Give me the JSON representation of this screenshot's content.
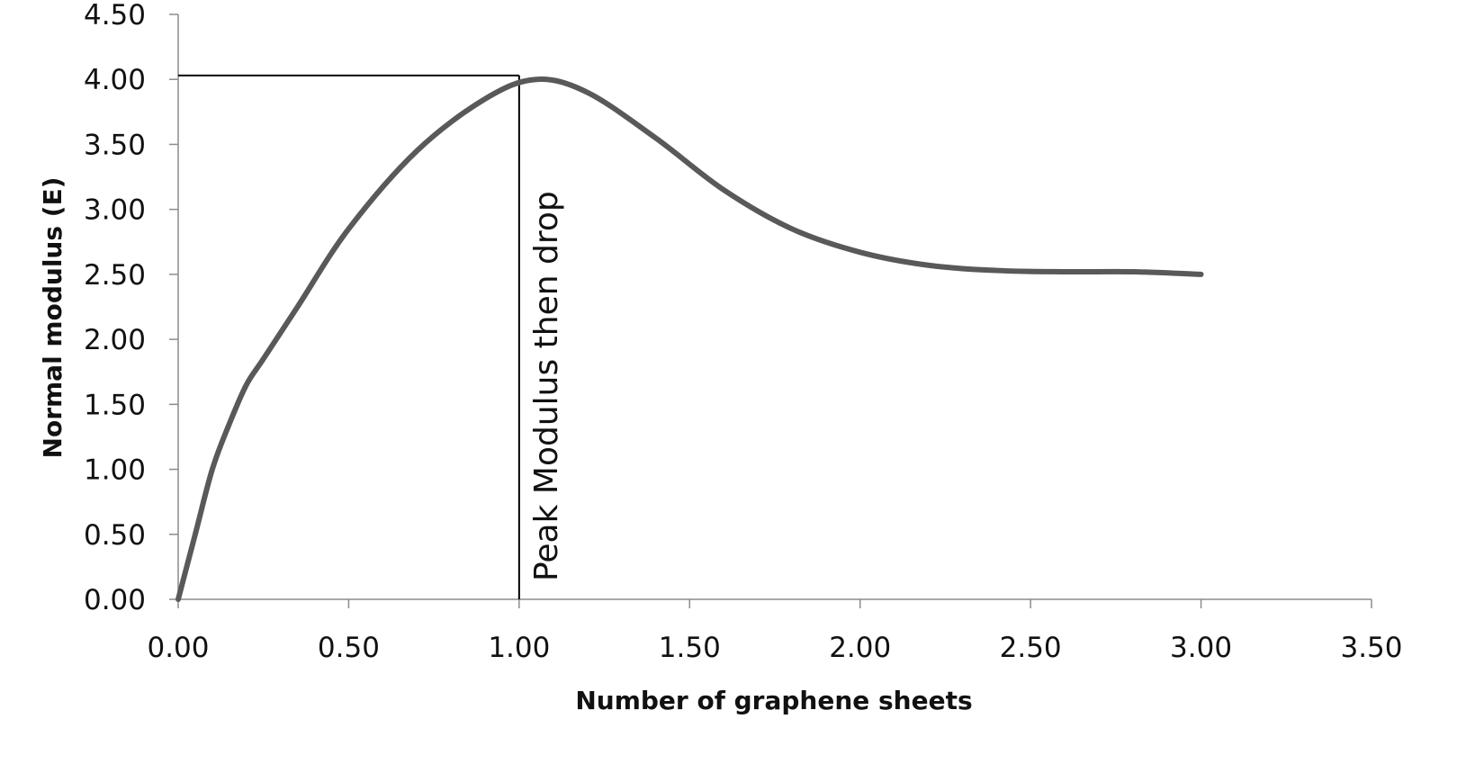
{
  "chart_data": {
    "type": "line",
    "title": "",
    "xlabel": "Number of graphene sheets",
    "ylabel": "Normal modulus (E)",
    "xlim": [
      0,
      3.5
    ],
    "ylim": [
      0,
      4.5
    ],
    "x_ticks": [
      0,
      0.5,
      1,
      1.5,
      2,
      2.5,
      3,
      3.5
    ],
    "y_ticks": [
      0,
      0.5,
      1,
      1.5,
      2,
      2.5,
      3,
      3.5,
      4,
      4.5
    ],
    "x_tick_labels": [
      "0.00",
      "0.50",
      "1.00",
      "1.50",
      "2.00",
      "2.50",
      "3.00",
      "3.50"
    ],
    "y_tick_labels": [
      "0.00",
      "0.50",
      "1.00",
      "1.50",
      "2.00",
      "2.50",
      "3.00",
      "3.50",
      "4.00",
      "4.50"
    ],
    "grid": false,
    "legend": "none",
    "series": [
      {
        "color": "#595959",
        "x": [
          0,
          0.05,
          0.1,
          0.15,
          0.2,
          0.25,
          0.35,
          0.5,
          0.7,
          0.9,
          1.05,
          1.2,
          1.4,
          1.6,
          1.8,
          2.0,
          2.2,
          2.4,
          2.6,
          2.8,
          3.0
        ],
        "y": [
          0,
          0.5,
          1.0,
          1.35,
          1.65,
          1.85,
          2.25,
          2.85,
          3.45,
          3.85,
          4.0,
          3.9,
          3.55,
          3.15,
          2.85,
          2.67,
          2.57,
          2.53,
          2.52,
          2.52,
          2.5
        ]
      }
    ],
    "annotations": [
      {
        "text": "Peak Modulus then drop",
        "x": 1.0,
        "y": 4.03
      }
    ]
  }
}
